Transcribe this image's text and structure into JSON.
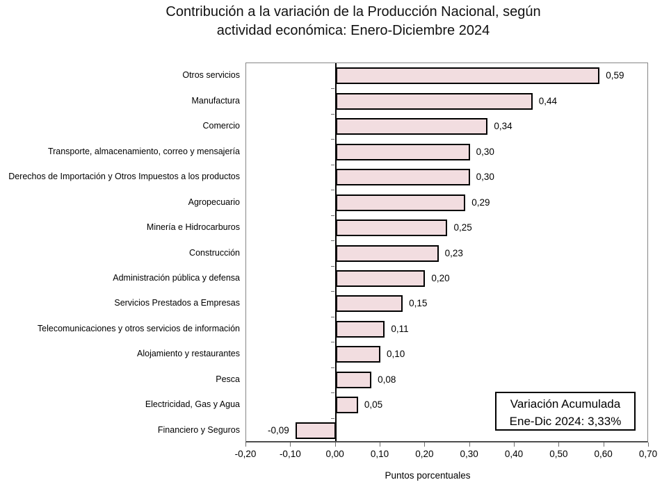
{
  "title": {
    "line1": "Contribución a la variación de la Producción Nacional, según",
    "line2": "actividad económica: Enero-Diciembre 2024"
  },
  "chart_data": {
    "type": "bar",
    "orientation": "horizontal",
    "title": "Contribución a la variación de la Producción Nacional, según actividad económica: Enero-Diciembre 2024",
    "xlabel": "Puntos porcentuales",
    "ylabel": "",
    "xlim": [
      -0.2,
      0.7
    ],
    "grid": false,
    "categories": [
      "Otros servicios",
      "Manufactura",
      "Comercio",
      "Transporte, almacenamiento, correo y mensajería",
      "Derechos de Importación y Otros Impuestos a los productos",
      "Agropecuario",
      "Minería e Hidrocarburos",
      "Construcción",
      "Administración pública y defensa",
      "Servicios Prestados a Empresas",
      "Telecomunicaciones y otros servicios de información",
      "Alojamiento y restaurantes",
      "Pesca",
      "Electricidad, Gas y Agua",
      "Financiero y Seguros"
    ],
    "values": [
      0.59,
      0.44,
      0.34,
      0.3,
      0.3,
      0.29,
      0.25,
      0.23,
      0.2,
      0.15,
      0.11,
      0.1,
      0.08,
      0.05,
      -0.09
    ],
    "value_labels": [
      "0,59",
      "0,44",
      "0,34",
      "0,30",
      "0,30",
      "0,29",
      "0,25",
      "0,23",
      "0,20",
      "0,15",
      "0,11",
      "0,10",
      "0,08",
      "0,05",
      "-0,09"
    ],
    "x_ticks": [
      -0.2,
      -0.1,
      0.0,
      0.1,
      0.2,
      0.3,
      0.4,
      0.5,
      0.6,
      0.7
    ],
    "x_tick_labels": [
      "-0,20",
      "-0,10",
      "0,00",
      "0,10",
      "0,20",
      "0,30",
      "0,40",
      "0,50",
      "0,60",
      "0,70"
    ],
    "bar_fill_color": "#f2dde0",
    "bar_border_color": "#000000",
    "annotation": {
      "line1": "Variación Acumulada",
      "line2": "Ene-Dic 2024: 3,33%"
    }
  }
}
